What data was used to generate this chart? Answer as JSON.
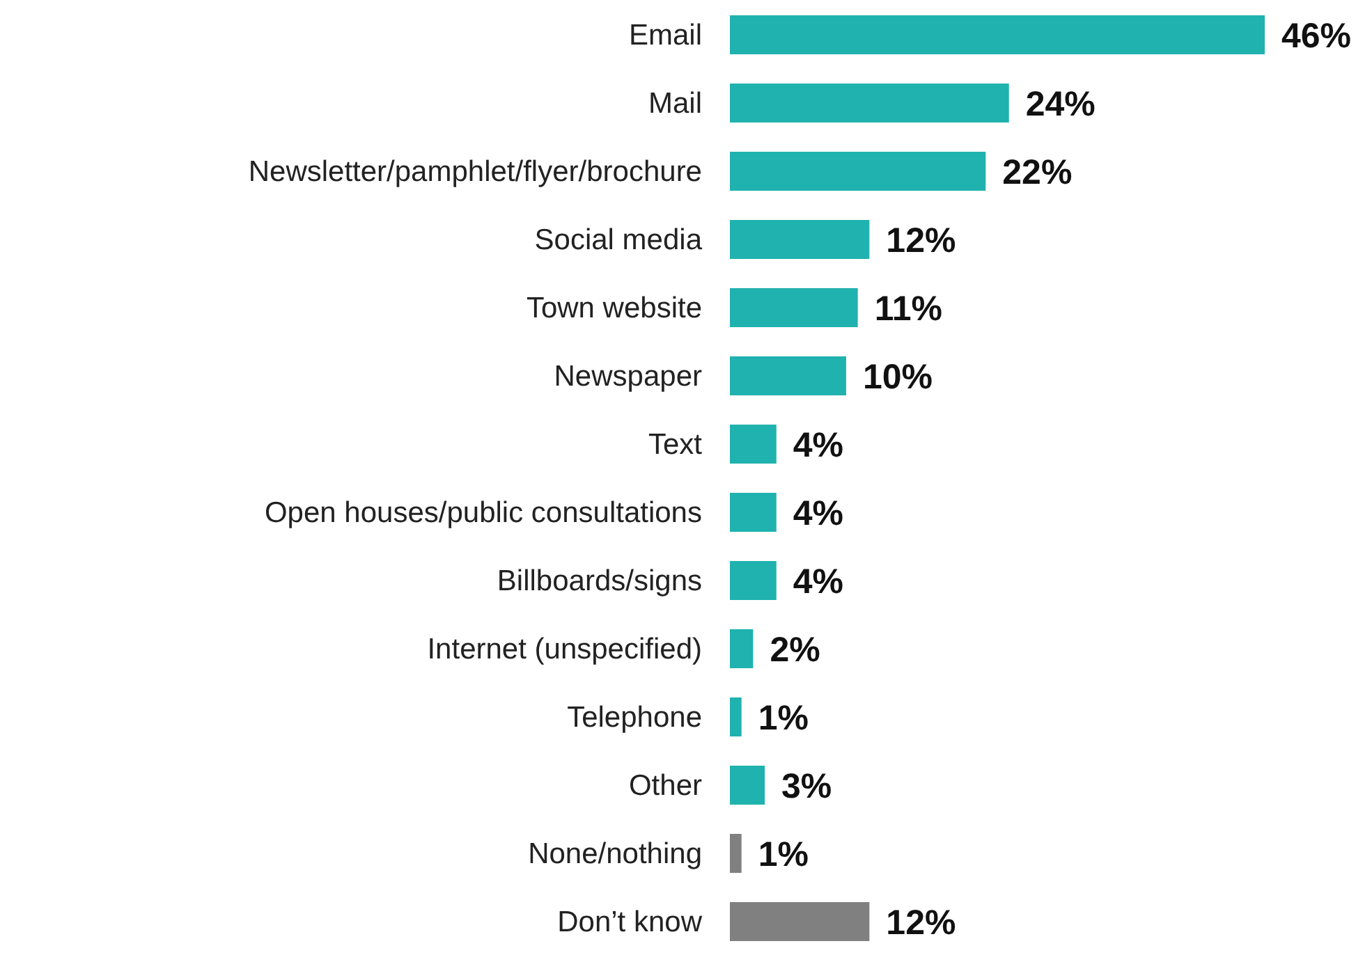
{
  "chart_data": {
    "type": "bar",
    "orientation": "horizontal",
    "value_labels": [
      "46%",
      "24%",
      "22%",
      "12%",
      "11%",
      "10%",
      "4%",
      "4%",
      "4%",
      "2%",
      "1%",
      "3%",
      "1%",
      "12%"
    ],
    "categories": [
      "Email",
      "Mail",
      "Newsletter/pamphlet/flyer/brochure",
      "Social media",
      "Town website",
      "Newspaper",
      "Text",
      "Open houses/public consultations",
      "Billboards/signs",
      "Internet (unspecified)",
      "Telephone",
      "Other",
      "None/nothing",
      "Don’t know"
    ],
    "values": [
      46,
      24,
      22,
      12,
      11,
      10,
      4,
      4,
      4,
      2,
      1,
      3,
      1,
      12
    ],
    "colors": [
      "#20b2ae",
      "#20b2ae",
      "#20b2ae",
      "#20b2ae",
      "#20b2ae",
      "#20b2ae",
      "#20b2ae",
      "#20b2ae",
      "#20b2ae",
      "#20b2ae",
      "#20b2ae",
      "#20b2ae",
      "#808080",
      "#808080"
    ]
  }
}
